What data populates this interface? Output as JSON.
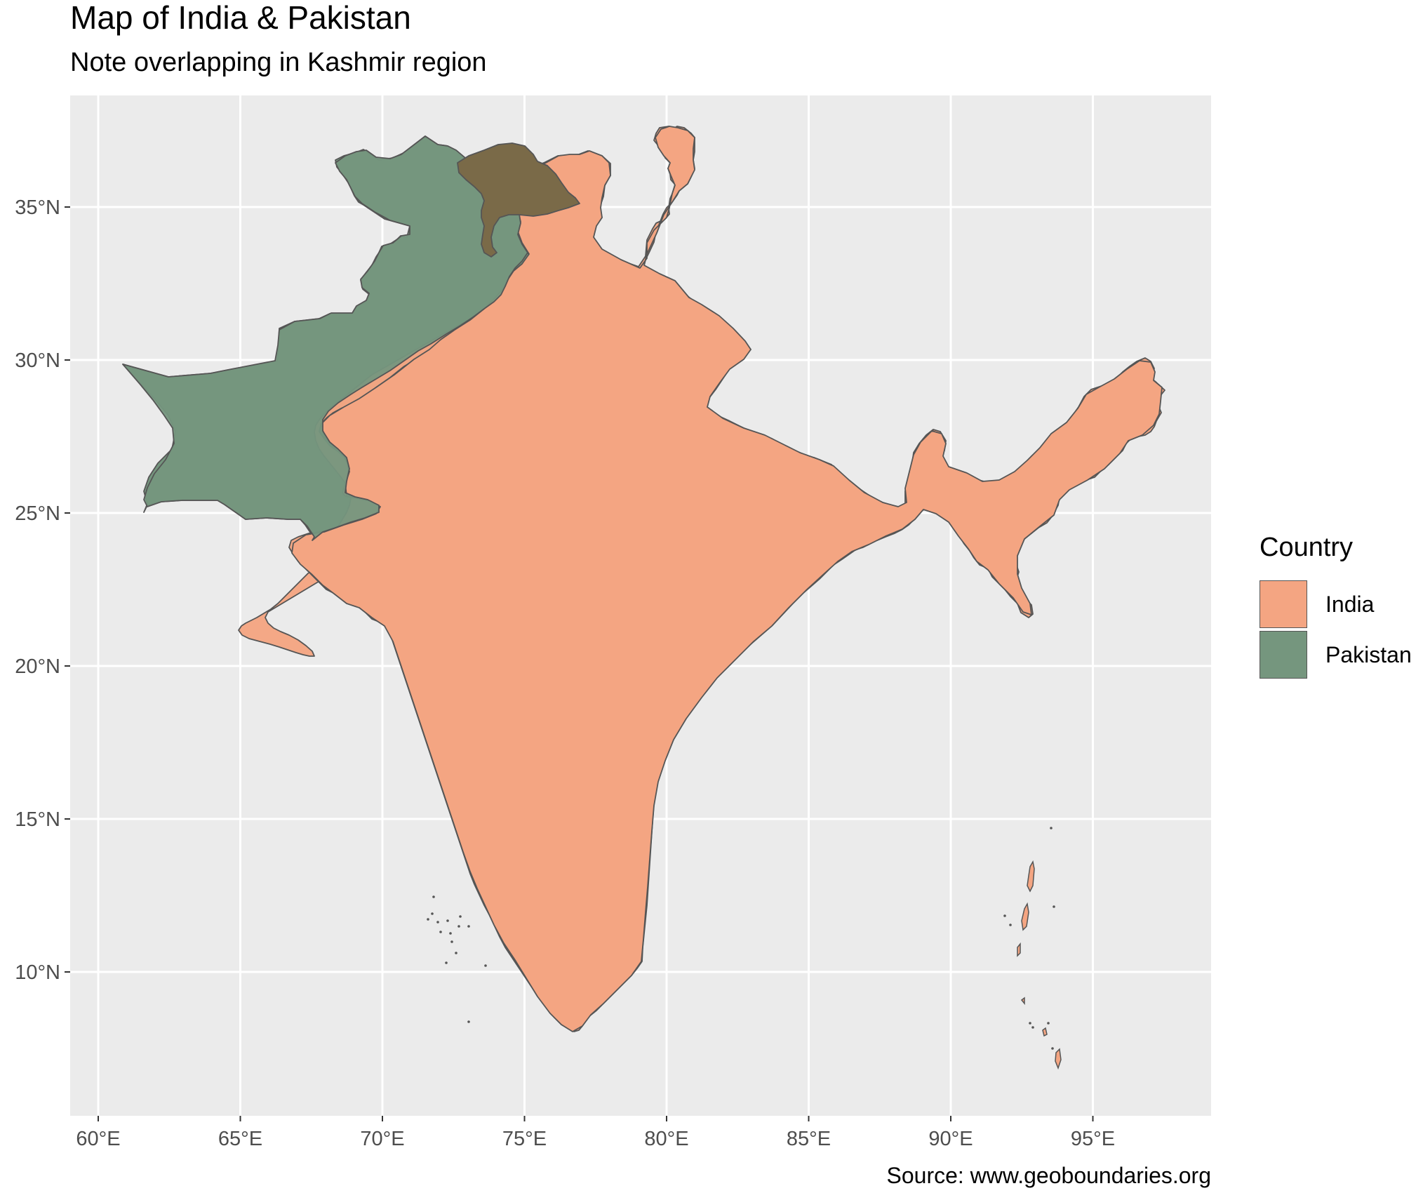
{
  "title": "Map of India & Pakistan",
  "subtitle": "Note overlapping in Kashmir region",
  "caption": "Source: www.geoboundaries.org",
  "chart_data": {
    "type": "map",
    "x_ticks": [
      "60°E",
      "65°E",
      "70°E",
      "75°E",
      "80°E",
      "85°E",
      "90°E",
      "95°E"
    ],
    "y_ticks": [
      "10°N",
      "15°N",
      "20°N",
      "25°N",
      "30°N",
      "35°N"
    ],
    "xlim": [
      59,
      99
    ],
    "ylim": [
      6,
      38
    ],
    "grid": true,
    "legend_position": "right",
    "legend": {
      "title": "Country",
      "entries": [
        {
          "name": "India",
          "color": "#f4a582"
        },
        {
          "name": "Pakistan",
          "color": "#75967e"
        }
      ]
    },
    "regions": [
      {
        "name": "India",
        "color": "#f4a582"
      },
      {
        "name": "Pakistan",
        "color": "#75967e"
      }
    ],
    "colors": {
      "panel_background": "#ebebeb",
      "grid": "#ffffff",
      "border": "#555555",
      "overlap": "#7a6a48"
    }
  }
}
